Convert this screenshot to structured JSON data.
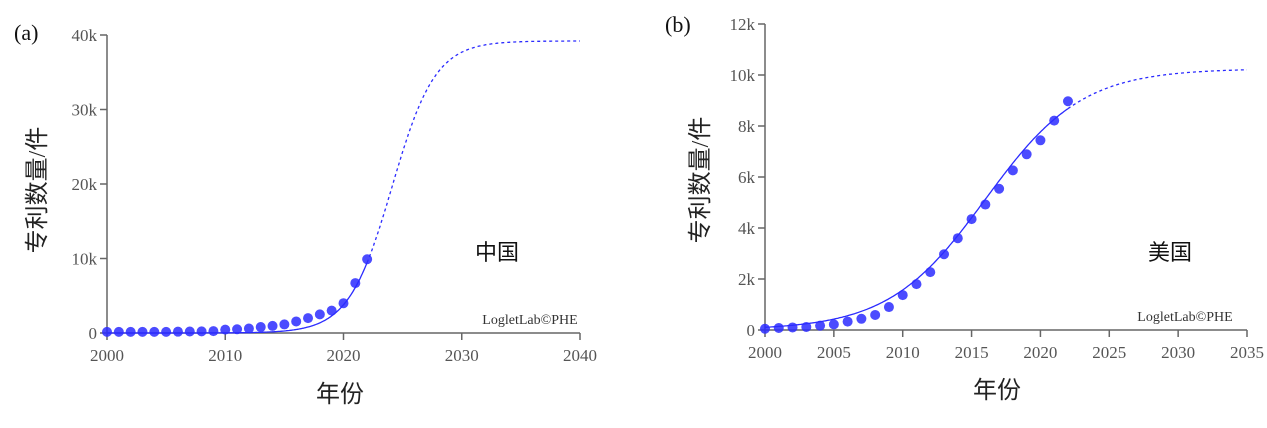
{
  "chart_data": [
    {
      "type": "scatter",
      "panel_label": "(a)",
      "region_label": "中国",
      "watermark": "LogletLab©PHE",
      "xlabel": "年份",
      "ylabel": "专利数量/件",
      "xlim": [
        2000,
        2040
      ],
      "ylim": [
        0,
        40000
      ],
      "xticks": [
        2000,
        2010,
        2020,
        2030,
        2040
      ],
      "xtick_labels": [
        "2000",
        "2010",
        "2020",
        "2030",
        "2040"
      ],
      "yticks": [
        0,
        10000,
        20000,
        30000,
        40000
      ],
      "ytick_labels": [
        "0",
        "10k",
        "20k",
        "30k",
        "40k"
      ],
      "color": "#2b2bff",
      "points": {
        "x": [
          2000,
          2001,
          2002,
          2003,
          2004,
          2005,
          2006,
          2007,
          2008,
          2009,
          2010,
          2011,
          2012,
          2013,
          2014,
          2015,
          2016,
          2017,
          2018,
          2019,
          2020,
          2021,
          2022
        ],
        "y": [
          150,
          150,
          150,
          150,
          150,
          150,
          180,
          200,
          220,
          250,
          450,
          500,
          600,
          800,
          950,
          1150,
          1550,
          2000,
          2500,
          3000,
          4000,
          6700,
          9900
        ]
      },
      "fit": {
        "model": "logistic",
        "K": 39200,
        "midpoint": 2024.1,
        "rate": 0.545,
        "solid_until": 2022
      }
    },
    {
      "type": "scatter",
      "panel_label": "(b)",
      "region_label": "美国",
      "watermark": "LogletLab©PHE",
      "xlabel": "年份",
      "ylabel": "专利数量/件",
      "xlim": [
        2000,
        2035
      ],
      "ylim": [
        0,
        12000
      ],
      "xticks": [
        2000,
        2005,
        2010,
        2015,
        2020,
        2025,
        2030,
        2035
      ],
      "xtick_labels": [
        "2000",
        "2005",
        "2010",
        "2015",
        "2020",
        "2025",
        "2030",
        "2035"
      ],
      "yticks": [
        0,
        2000,
        4000,
        6000,
        8000,
        10000,
        12000
      ],
      "ytick_labels": [
        "0",
        "2k",
        "4k",
        "6k",
        "8k",
        "10k",
        "12k"
      ],
      "color": "#2b2bff",
      "points": {
        "x": [
          2000,
          2001,
          2002,
          2003,
          2004,
          2005,
          2006,
          2007,
          2008,
          2009,
          2010,
          2011,
          2012,
          2013,
          2014,
          2015,
          2016,
          2017,
          2018,
          2019,
          2020,
          2021,
          2022
        ],
        "y": [
          50,
          80,
          100,
          120,
          170,
          220,
          330,
          440,
          590,
          900,
          1370,
          1800,
          2270,
          2970,
          3600,
          4350,
          4920,
          5540,
          6260,
          6890,
          7440,
          8210,
          8970
        ]
      },
      "fit": {
        "model": "logistic",
        "K": 10250,
        "midpoint": 2016.0,
        "rate": 0.285,
        "solid_until": 2022
      }
    }
  ]
}
